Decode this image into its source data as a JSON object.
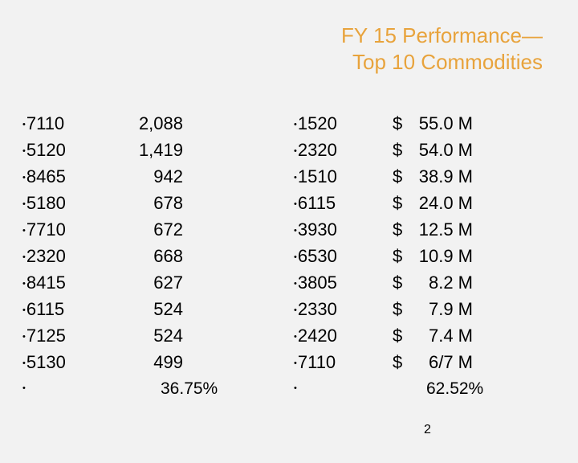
{
  "title": {
    "line1": "FY 15 Performance—",
    "line2": "Top 10 Commodities"
  },
  "bullet": "•",
  "left_table": {
    "codes": [
      "7110",
      "5120",
      "8465",
      "5180",
      "7710",
      "2320",
      "8415",
      "6115",
      "7125",
      "5130"
    ],
    "counts": [
      "2,088",
      "1,419",
      "942",
      "678",
      "672",
      "668",
      "627",
      "524",
      "524",
      "499"
    ],
    "total": "36.75%"
  },
  "right_table": {
    "codes": [
      "1520",
      "2320",
      "1510",
      "6115",
      "3930",
      "6530",
      "3805",
      "2330",
      "2420",
      "7110"
    ],
    "currency": "$",
    "amounts": [
      "55.0 M",
      "54.0 M",
      "38.9 M",
      "24.0 M",
      "12.5 M",
      "10.9 M",
      "8.2 M",
      "7.9 M",
      "7.4 M",
      "6/7 M"
    ],
    "total": "62.52%"
  },
  "page_number": "2"
}
